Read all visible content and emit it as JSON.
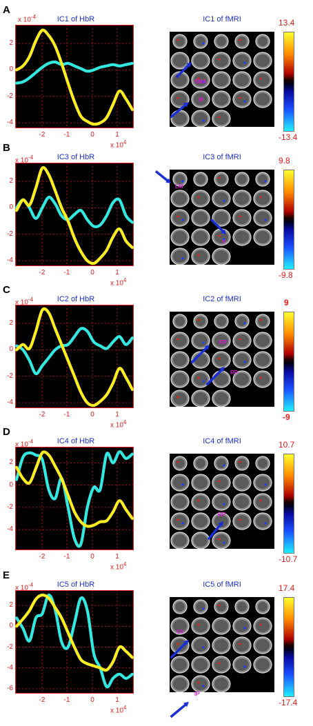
{
  "panels": [
    {
      "letter": "A",
      "hbr_title": "IC1 of HbR",
      "fmri_title": "IC1 of fMRI",
      "cmax": "13.4",
      "cmin": "-13.4",
      "yticks": [
        "2",
        "0",
        "-2",
        "-4"
      ],
      "ylim": [
        -4.2,
        3.2
      ],
      "yellow": [
        0,
        0.3,
        1,
        2.2,
        3,
        2.6,
        1.8,
        0.5,
        -1,
        -2.4,
        -3.5,
        -3.9,
        -4.1,
        -4,
        -3.6,
        -2.6,
        -1.6,
        -2.2,
        -3
      ],
      "cyan": [
        -1,
        -0.9,
        -0.6,
        -0.2,
        0.2,
        0.5,
        0.6,
        0.4,
        0.5,
        0.3,
        0.1,
        -0.1,
        0,
        0.2,
        0.3,
        0.4,
        0.3,
        0.4,
        0.5
      ],
      "annots": [
        "SMA",
        "M"
      ]
    },
    {
      "letter": "B",
      "hbr_title": "IC3 of HbR",
      "fmri_title": "IC3 of fMRI",
      "cmax": "9.8",
      "cmin": "-9.8",
      "yticks": [
        "2",
        "0",
        "-2",
        "-4"
      ],
      "ylim": [
        -4.2,
        3.2
      ],
      "yellow": [
        -0.2,
        0.6,
        0.2,
        1.5,
        3,
        2.5,
        1.3,
        0,
        -1,
        -2.3,
        -3.3,
        -4,
        -4.2,
        -3.8,
        -3.2,
        -2.2,
        -1.6,
        -2.5,
        -3
      ],
      "cyan": [
        0,
        0.6,
        0,
        -0.8,
        0,
        0.8,
        0.3,
        -0.6,
        -0.9,
        -0.5,
        -0.2,
        -0.9,
        -1.4,
        -1.3,
        -0.6,
        0.4,
        0.6,
        -0.6,
        -1.1
      ],
      "annots": [
        "LM",
        "V"
      ]
    },
    {
      "letter": "C",
      "hbr_title": "IC2 of HbR",
      "fmri_title": "IC2 of fMRI",
      "cmax": "9",
      "cmin": "-9",
      "yticks": [
        "2",
        "0",
        "-2",
        "-4"
      ],
      "ylim": [
        -4.2,
        3.2
      ],
      "yellow": [
        0,
        0.4,
        0.1,
        1.4,
        3,
        2.8,
        1.6,
        0.4,
        -0.8,
        -2,
        -3.2,
        -4,
        -4.2,
        -3.9,
        -3.4,
        -2.5,
        -1.4,
        -2.1,
        -3
      ],
      "cyan": [
        0.3,
        0,
        -0.8,
        -1.8,
        -1.2,
        -0.6,
        0,
        0.3,
        0.4,
        1,
        1.6,
        1.4,
        0.6,
        0.3,
        0.1,
        0.6,
        1,
        0.4,
        0.9
      ],
      "annots": [
        "RP",
        "RP"
      ]
    },
    {
      "letter": "D",
      "hbr_title": "IC4 of HbR",
      "fmri_title": "IC4 of fMRI",
      "cmax": "10.7",
      "cmin": "-10.7",
      "yticks": [
        "2",
        "0",
        "-2",
        "-4"
      ],
      "ylim": [
        -5.6,
        3.2
      ],
      "yellow": [
        1.6,
        0.6,
        0.2,
        1.5,
        2.9,
        2.7,
        1.7,
        0.6,
        -0.9,
        -2.4,
        -3.3,
        -3.7,
        -3.6,
        -3.3,
        -3.2,
        -2.4,
        -1.4,
        -2.2,
        -3
      ],
      "cyan": [
        0.5,
        2.5,
        2.9,
        2.7,
        2.3,
        -0.4,
        -1.2,
        0.6,
        -2,
        -4.8,
        -5.3,
        -2,
        -0.2,
        -0.4,
        2.8,
        2,
        3,
        2.4,
        2.8
      ],
      "annots": [
        "RP"
      ]
    },
    {
      "letter": "E",
      "hbr_title": "IC5 of HbR",
      "fmri_title": "IC5 of fMRI",
      "cmax": "17.4",
      "cmin": "-17.4",
      "yticks": [
        "2",
        "0",
        "-2",
        "-4",
        "-6"
      ],
      "ylim": [
        -6.2,
        3.2
      ],
      "yellow": [
        0,
        0.7,
        1.5,
        2.6,
        3,
        2.7,
        1.8,
        0.8,
        -0.6,
        -2,
        -3.2,
        -3.6,
        -3.8,
        -4,
        -4.2,
        -3.4,
        -2,
        -2.4,
        -3
      ],
      "cyan": [
        0.8,
        -0.2,
        -1.4,
        0.8,
        1.2,
        3,
        1.6,
        -1.5,
        -2,
        0.3,
        2.7,
        1.5,
        -2.6,
        -4,
        -5.8,
        -5,
        -4.6,
        -5,
        -4.6
      ],
      "annots": [
        "SV",
        "IP"
      ]
    }
  ],
  "xticks": [
    "-2",
    "-1",
    "0",
    "1"
  ],
  "xmult_base": "x 10",
  "xmult_exp": "4",
  "ymult_base": "x 10",
  "ymult_exp": "-4",
  "colors": {
    "yellow": "#ffee22",
    "cyan": "#33e8e0",
    "grid": "#e81919",
    "title": "#1a2fd6",
    "tick": "#e81919",
    "annot": "#d21ed2",
    "arrow": "#1a2fd6"
  }
}
